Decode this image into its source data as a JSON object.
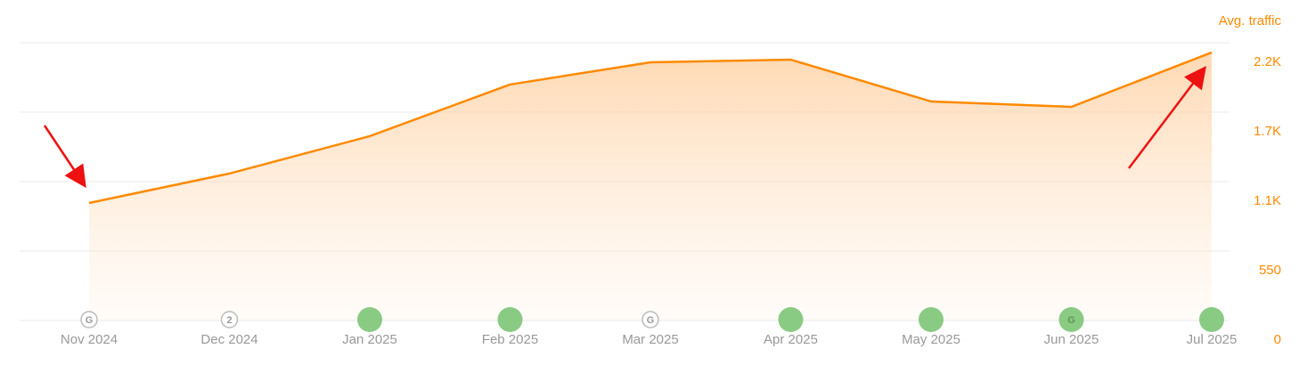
{
  "chart_data": {
    "type": "area",
    "y_label": "Avg. traffic",
    "categories": [
      "Nov 2024",
      "Dec 2024",
      "Jan 2025",
      "Feb 2025",
      "Mar 2025",
      "Apr 2025",
      "May 2025",
      "Jun 2025",
      "Jul 2025"
    ],
    "series": [
      {
        "name": "Avg. traffic",
        "color": "#ff8a00",
        "values": [
          931,
          1164,
          1460,
          1869,
          2045,
          2066,
          1735,
          1692,
          2123
        ]
      }
    ],
    "ylim": [
      0,
      2200
    ],
    "yticks": [
      0,
      550,
      {
        "value": 1100,
        "label": "1.1K"
      },
      {
        "value": 1650,
        "label": "1.7K"
      },
      {
        "value": 2200,
        "label": "2.2K"
      }
    ],
    "grid": true,
    "markers": [
      {
        "label": "G",
        "filled": false
      },
      {
        "label": "2",
        "filled": false
      },
      {
        "label": null,
        "filled": true
      },
      {
        "label": null,
        "filled": true
      },
      {
        "label": "G",
        "filled": false
      },
      {
        "label": null,
        "filled": true
      },
      {
        "label": null,
        "filled": true
      },
      {
        "label": "G",
        "filled": true
      },
      {
        "label": null,
        "filled": true
      }
    ]
  }
}
